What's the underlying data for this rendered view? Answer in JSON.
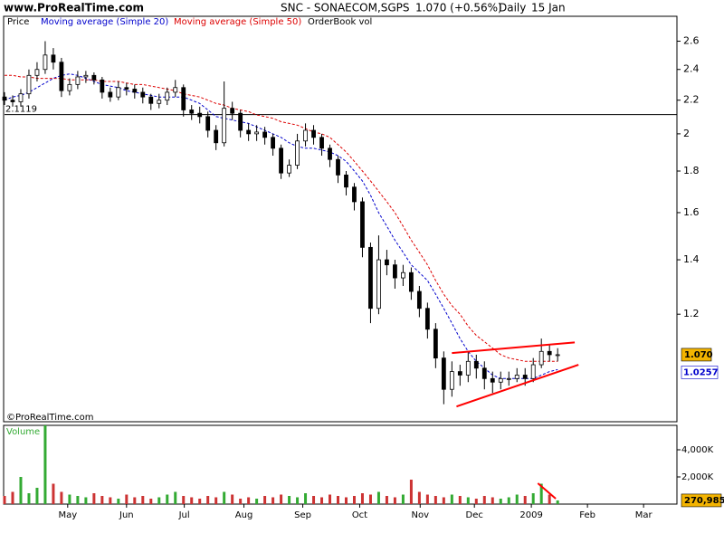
{
  "header": {
    "site": "www.ProRealTime.com",
    "title": "SNC - SONAECOM,SGPS",
    "last": "1.070 (+0.56%)",
    "period": "Daily",
    "date": "15 Jan"
  },
  "chart_data": [
    {
      "type": "candlestick",
      "price_name": "Price",
      "extra_legend": "OrderBook vol",
      "copyright": "©ProRealTime.com",
      "x": [
        0,
        3,
        6,
        9,
        12,
        15,
        18,
        21,
        24,
        27,
        30,
        33,
        36,
        39,
        42,
        45,
        48,
        51,
        54,
        57,
        60,
        63,
        66,
        69,
        72,
        75,
        78,
        81,
        84,
        87,
        90,
        93,
        96,
        99,
        102,
        105,
        108,
        111,
        114,
        117,
        120,
        123,
        126,
        129,
        132,
        135,
        138,
        141,
        144,
        147,
        150,
        153,
        156,
        159,
        162,
        165,
        168,
        171,
        174,
        177,
        180,
        183,
        186,
        189,
        192,
        195,
        198,
        201,
        204
      ],
      "open": [
        2.22,
        2.2,
        2.19,
        2.24,
        2.36,
        2.4,
        2.5,
        2.45,
        2.26,
        2.3,
        2.35,
        2.36,
        2.33,
        2.25,
        2.22,
        2.28,
        2.27,
        2.25,
        2.22,
        2.18,
        2.2,
        2.25,
        2.28,
        2.14,
        2.12,
        2.1,
        2.02,
        1.95,
        2.15,
        2.12,
        2.02,
        2.0,
        2.01,
        1.98,
        1.92,
        1.79,
        1.83,
        1.96,
        2.02,
        1.98,
        1.92,
        1.86,
        1.78,
        1.72,
        1.65,
        1.45,
        1.22,
        1.4,
        1.38,
        1.33,
        1.35,
        1.28,
        1.22,
        1.15,
        1.06,
        0.97,
        1.02,
        1.01,
        1.05,
        1.03,
        1.0,
        0.99,
        1.0,
        1.0,
        1.01,
        1.0,
        1.04,
        1.08,
        1.07
      ],
      "high": [
        2.25,
        2.23,
        2.27,
        2.4,
        2.45,
        2.6,
        2.55,
        2.48,
        2.34,
        2.39,
        2.39,
        2.38,
        2.35,
        2.28,
        2.32,
        2.31,
        2.3,
        2.28,
        2.24,
        2.24,
        2.28,
        2.33,
        2.3,
        2.17,
        2.16,
        2.13,
        2.05,
        2.32,
        2.19,
        2.14,
        2.06,
        2.05,
        2.04,
        2.0,
        1.94,
        1.86,
        2.0,
        2.06,
        2.05,
        2.0,
        1.94,
        1.88,
        1.8,
        1.74,
        1.67,
        1.47,
        1.5,
        1.44,
        1.4,
        1.38,
        1.37,
        1.3,
        1.24,
        1.17,
        1.08,
        1.05,
        1.04,
        1.08,
        1.07,
        1.05,
        1.02,
        1.02,
        1.02,
        1.03,
        1.03,
        1.06,
        1.12,
        1.1,
        1.09
      ],
      "low": [
        2.17,
        2.16,
        2.16,
        2.21,
        2.32,
        2.37,
        2.4,
        2.22,
        2.23,
        2.27,
        2.31,
        2.3,
        2.21,
        2.19,
        2.2,
        2.23,
        2.21,
        2.18,
        2.14,
        2.15,
        2.17,
        2.22,
        2.1,
        2.08,
        2.06,
        1.98,
        1.91,
        1.93,
        2.08,
        1.98,
        1.96,
        1.96,
        1.94,
        1.88,
        1.76,
        1.77,
        1.81,
        1.93,
        1.94,
        1.88,
        1.82,
        1.74,
        1.68,
        1.61,
        1.41,
        1.17,
        1.2,
        1.34,
        1.29,
        1.3,
        1.25,
        1.19,
        1.12,
        1.03,
        0.93,
        0.95,
        0.98,
        0.99,
        1.0,
        0.97,
        0.96,
        0.97,
        0.98,
        0.99,
        0.98,
        0.99,
        1.03,
        1.05,
        1.05
      ],
      "close": [
        2.2,
        2.19,
        2.24,
        2.36,
        2.4,
        2.5,
        2.45,
        2.26,
        2.3,
        2.35,
        2.36,
        2.33,
        2.25,
        2.22,
        2.28,
        2.27,
        2.25,
        2.22,
        2.18,
        2.2,
        2.25,
        2.28,
        2.14,
        2.12,
        2.1,
        2.02,
        1.95,
        2.15,
        2.12,
        2.02,
        2.0,
        2.01,
        1.98,
        1.92,
        1.79,
        1.83,
        1.96,
        2.02,
        1.98,
        1.92,
        1.86,
        1.78,
        1.72,
        1.65,
        1.45,
        1.22,
        1.4,
        1.38,
        1.33,
        1.35,
        1.28,
        1.22,
        1.15,
        1.06,
        0.97,
        1.02,
        1.01,
        1.05,
        1.03,
        1.0,
        0.99,
        1.0,
        1.0,
        1.01,
        1.0,
        1.04,
        1.08,
        1.07,
        1.07
      ],
      "series": [
        {
          "name": "Moving average (Simple 20)",
          "color": "#0000cc",
          "values": [
            2.2,
            2.22,
            2.23,
            2.25,
            2.28,
            2.31,
            2.34,
            2.36,
            2.37,
            2.36,
            2.34,
            2.32,
            2.3,
            2.29,
            2.28,
            2.26,
            2.25,
            2.24,
            2.23,
            2.22,
            2.22,
            2.22,
            2.22,
            2.2,
            2.18,
            2.14,
            2.1,
            2.09,
            2.08,
            2.07,
            2.06,
            2.04,
            2.02,
            2.0,
            1.98,
            1.95,
            1.93,
            1.92,
            1.92,
            1.91,
            1.9,
            1.88,
            1.85,
            1.8,
            1.75,
            1.68,
            1.6,
            1.54,
            1.48,
            1.43,
            1.38,
            1.35,
            1.32,
            1.27,
            1.22,
            1.17,
            1.12,
            1.08,
            1.05,
            1.03,
            1.01,
            1.0,
            1.0,
            1.0,
            1.0,
            1.0,
            1.01,
            1.02,
            1.0257
          ]
        },
        {
          "name": "Moving average (Simple 50)",
          "color": "#dd0000",
          "values": [
            2.36,
            2.36,
            2.35,
            2.35,
            2.34,
            2.34,
            2.34,
            2.34,
            2.33,
            2.33,
            2.33,
            2.33,
            2.32,
            2.32,
            2.32,
            2.31,
            2.3,
            2.3,
            2.29,
            2.28,
            2.27,
            2.26,
            2.24,
            2.23,
            2.22,
            2.2,
            2.18,
            2.17,
            2.15,
            2.14,
            2.13,
            2.11,
            2.1,
            2.09,
            2.07,
            2.06,
            2.05,
            2.03,
            2.01,
            2.0,
            1.98,
            1.94,
            1.9,
            1.85,
            1.8,
            1.75,
            1.7,
            1.65,
            1.6,
            1.54,
            1.48,
            1.43,
            1.38,
            1.32,
            1.27,
            1.23,
            1.2,
            1.16,
            1.13,
            1.11,
            1.09,
            1.07,
            1.06,
            1.055,
            1.05,
            1.05,
            1.05,
            1.05,
            1.05
          ]
        }
      ],
      "current_price": {
        "value": 1.07,
        "label": "1.070"
      },
      "hline": 2.1119,
      "trendlines": [
        {
          "color": "#ff0000",
          "x": [
            165,
            210.3
          ],
          "y": [
            1.075,
            1.108
          ]
        },
        {
          "color": "#ff0000",
          "x": [
            166.7,
            211.7
          ],
          "y": [
            0.924,
            1.04
          ]
        }
      ],
      "log_y": true,
      "xlim": [
        0,
        248
      ],
      "xticks": [
        {
          "value": 23.3,
          "label": "May"
        },
        {
          "value": 45,
          "label": "Jun"
        },
        {
          "value": 66.3,
          "label": "Jul"
        },
        {
          "value": 88.3,
          "label": "Aug"
        },
        {
          "value": 110,
          "label": "Sep"
        },
        {
          "value": 131,
          "label": "Oct"
        },
        {
          "value": 153.3,
          "label": "Nov"
        },
        {
          "value": 173.3,
          "label": "Dec"
        },
        {
          "value": 194.3,
          "label": "2009"
        },
        {
          "value": 215,
          "label": "Feb"
        },
        {
          "value": 235.7,
          "label": "Mar"
        }
      ],
      "ylim": [
        0.885,
        2.79
      ],
      "yticks": [
        1.2,
        1.4,
        1.6,
        1.8,
        2,
        2.2,
        2.4,
        2.6
      ]
    },
    {
      "type": "bar",
      "title": "Volume",
      "color_up": "#33aa33",
      "color_down": "#cc3333",
      "values": [
        600000,
        900000,
        2000000,
        800000,
        1200000,
        5800000,
        1500000,
        900000,
        700000,
        600000,
        500000,
        800000,
        600000,
        500000,
        400000,
        700000,
        500000,
        600000,
        400000,
        500000,
        700000,
        900000,
        600000,
        500000,
        400000,
        600000,
        500000,
        900000,
        700000,
        400000,
        500000,
        400000,
        600000,
        500000,
        700000,
        600000,
        500000,
        800000,
        600000,
        500000,
        700000,
        600000,
        500000,
        600000,
        800000,
        700000,
        900000,
        600000,
        500000,
        700000,
        1800000,
        900000,
        700000,
        600000,
        500000,
        700000,
        600000,
        500000,
        400000,
        600000,
        500000,
        400000,
        500000,
        700000,
        600000,
        800000,
        1500000,
        700000,
        270985
      ],
      "value_labels": [
        null,
        null,
        null,
        null,
        null,
        null,
        null,
        null,
        null,
        null,
        null,
        null,
        null,
        null,
        null,
        null,
        null,
        null,
        null,
        null,
        null,
        null,
        null,
        null,
        null,
        null,
        null,
        null,
        null,
        null,
        null,
        null,
        null,
        null,
        null,
        null,
        null,
        null,
        null,
        null,
        null,
        null,
        null,
        null,
        null,
        null,
        null,
        null,
        null,
        null,
        null,
        null,
        null,
        null,
        null,
        null,
        null,
        null,
        null,
        null,
        null,
        null,
        null,
        null,
        null,
        null,
        null,
        null,
        "270,985"
      ],
      "trendline": {
        "color": "#ff0000",
        "x": [
          196.7,
          203.3
        ],
        "y": [
          1530000,
          400000
        ]
      },
      "ylim": [
        0,
        5800000
      ],
      "yticks": [
        {
          "value": 2000000,
          "label": "2,000K"
        },
        {
          "value": 4000000,
          "label": "4,000K"
        }
      ]
    }
  ]
}
